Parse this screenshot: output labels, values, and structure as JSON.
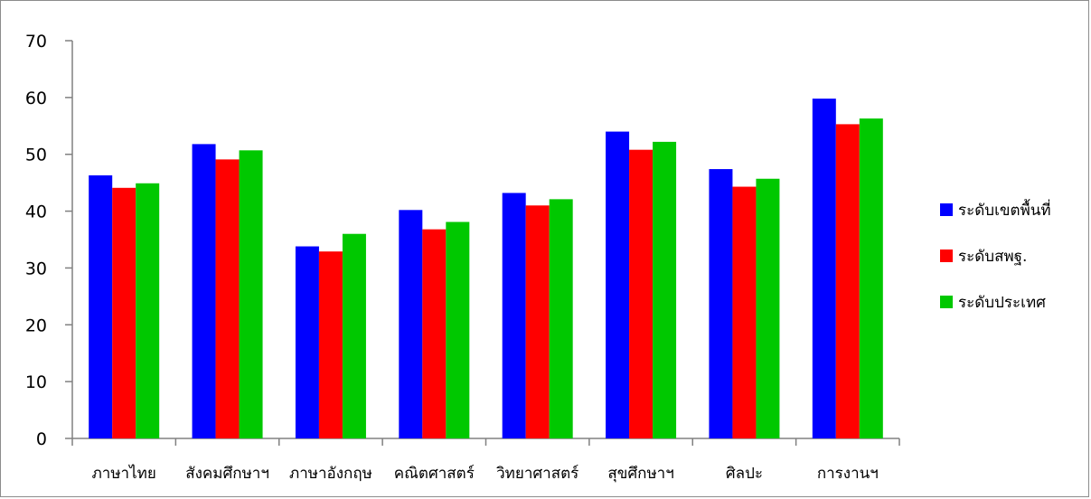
{
  "chart_data": {
    "type": "bar",
    "title": "",
    "xlabel": "",
    "ylabel": "",
    "ylim": [
      0,
      70
    ],
    "yticks": [
      0,
      10,
      20,
      30,
      40,
      50,
      60,
      70
    ],
    "grid": false,
    "legend_position": "right",
    "categories": [
      "ภาษาไทย",
      "สังคมศึกษาฯ",
      "ภาษาอังกฤษ",
      "คณิตศาสตร์",
      "วิทยาศาสตร์",
      "สุขศึกษาฯ",
      "ศิลปะ",
      "การงานฯ"
    ],
    "series": [
      {
        "name": "ระดับเขตพื้นที่",
        "color": "#0000ff",
        "values": [
          46.3,
          51.8,
          33.8,
          40.2,
          43.2,
          54.0,
          47.4,
          59.8
        ]
      },
      {
        "name": "ระดับสพฐ.",
        "color": "#ff0000",
        "values": [
          44.1,
          49.1,
          32.9,
          36.8,
          41.0,
          50.8,
          44.3,
          55.3
        ]
      },
      {
        "name": "ระดับประเทศ",
        "color": "#00c800",
        "values": [
          44.9,
          50.7,
          36.0,
          38.1,
          42.1,
          52.2,
          45.7,
          56.3
        ]
      }
    ]
  }
}
